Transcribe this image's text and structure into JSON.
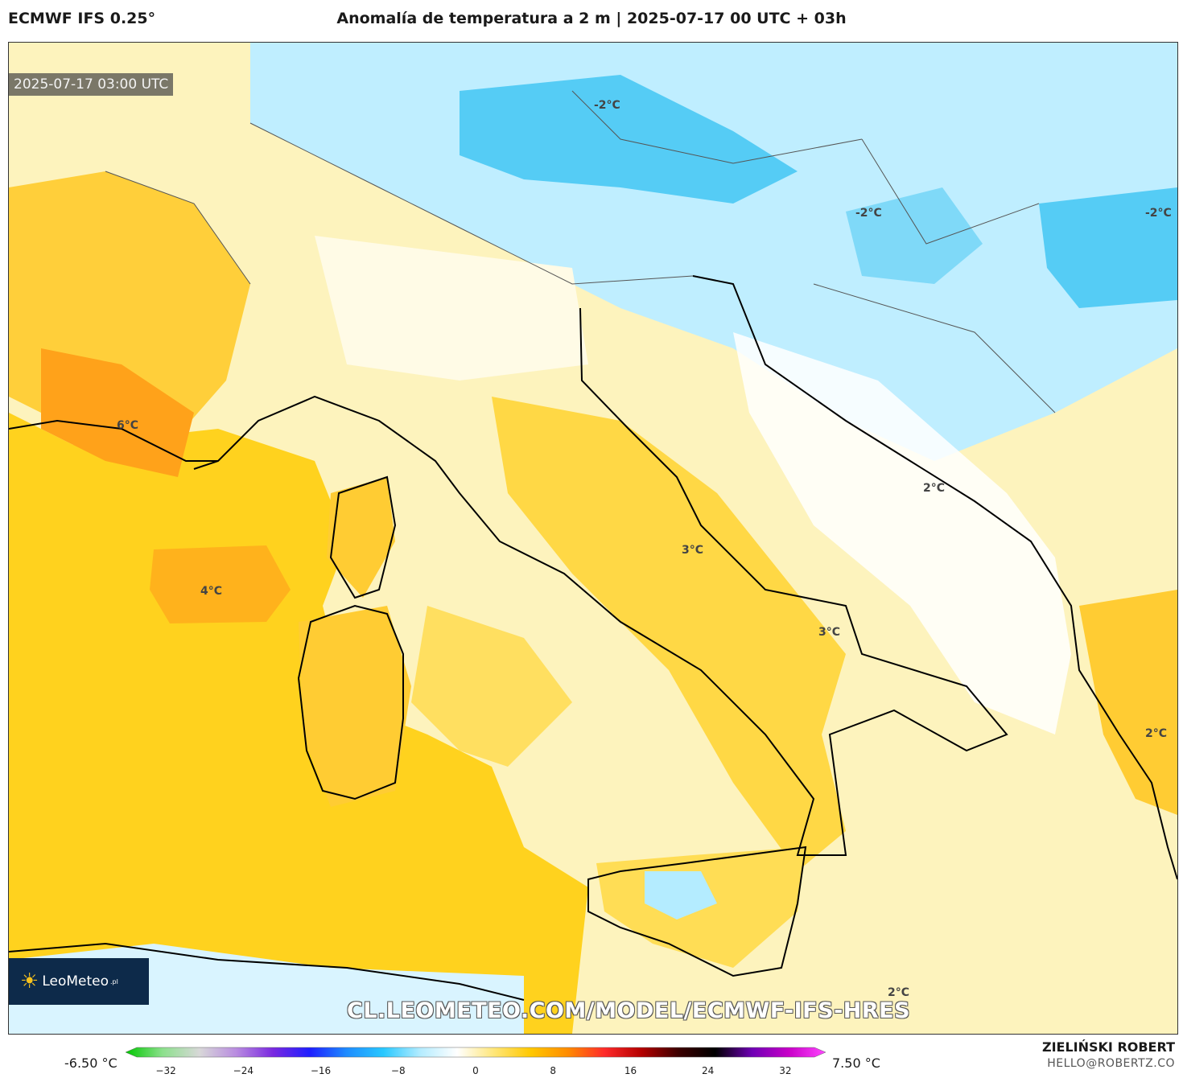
{
  "header": {
    "model": "ECMWF IFS 0.25°",
    "title": "Anomalía de temperatura a 2 m | 2025-07-17 00 UTC + 03h"
  },
  "map": {
    "valid_time": "2025-07-17 03:00 UTC",
    "labels": [
      "-2°C",
      "-2°C",
      "-2°C",
      "6°C",
      "4°C",
      "3°C",
      "3°C",
      "2°C",
      "2°C",
      "2°C"
    ],
    "source_url": "CL.LEOMETEO.COM/MODEL/ECMWF-IFS-HRES",
    "logo": {
      "name": "LeoMeteo",
      "tld": ".pl",
      "icon": "sun-icon"
    }
  },
  "legend": {
    "min": "-6.50 °C",
    "max": "7.50 °C",
    "ticks": [
      "−32",
      "−24",
      "−16",
      "−8",
      "0",
      "8",
      "16",
      "24",
      "32"
    ],
    "tick_values": [
      -32,
      -24,
      -16,
      -8,
      0,
      8,
      16,
      24,
      32
    ],
    "range": [
      -35,
      35
    ],
    "colors": [
      "#00c800",
      "#8ce08c",
      "#d8d8d8",
      "#b98ce0",
      "#7a28e0",
      "#1e1eff",
      "#1e8cff",
      "#28c8ff",
      "#b4ecff",
      "#ffffff",
      "#ffe678",
      "#ffc800",
      "#ff8c00",
      "#ff2a2a",
      "#b40000",
      "#3c0000",
      "#000000",
      "#6e00b4",
      "#c800c8",
      "#ff46ff"
    ]
  },
  "footer": {
    "author": "ZIELIŃSKI ROBERT",
    "contact": "HELLO@ROBERTZ.CO"
  }
}
